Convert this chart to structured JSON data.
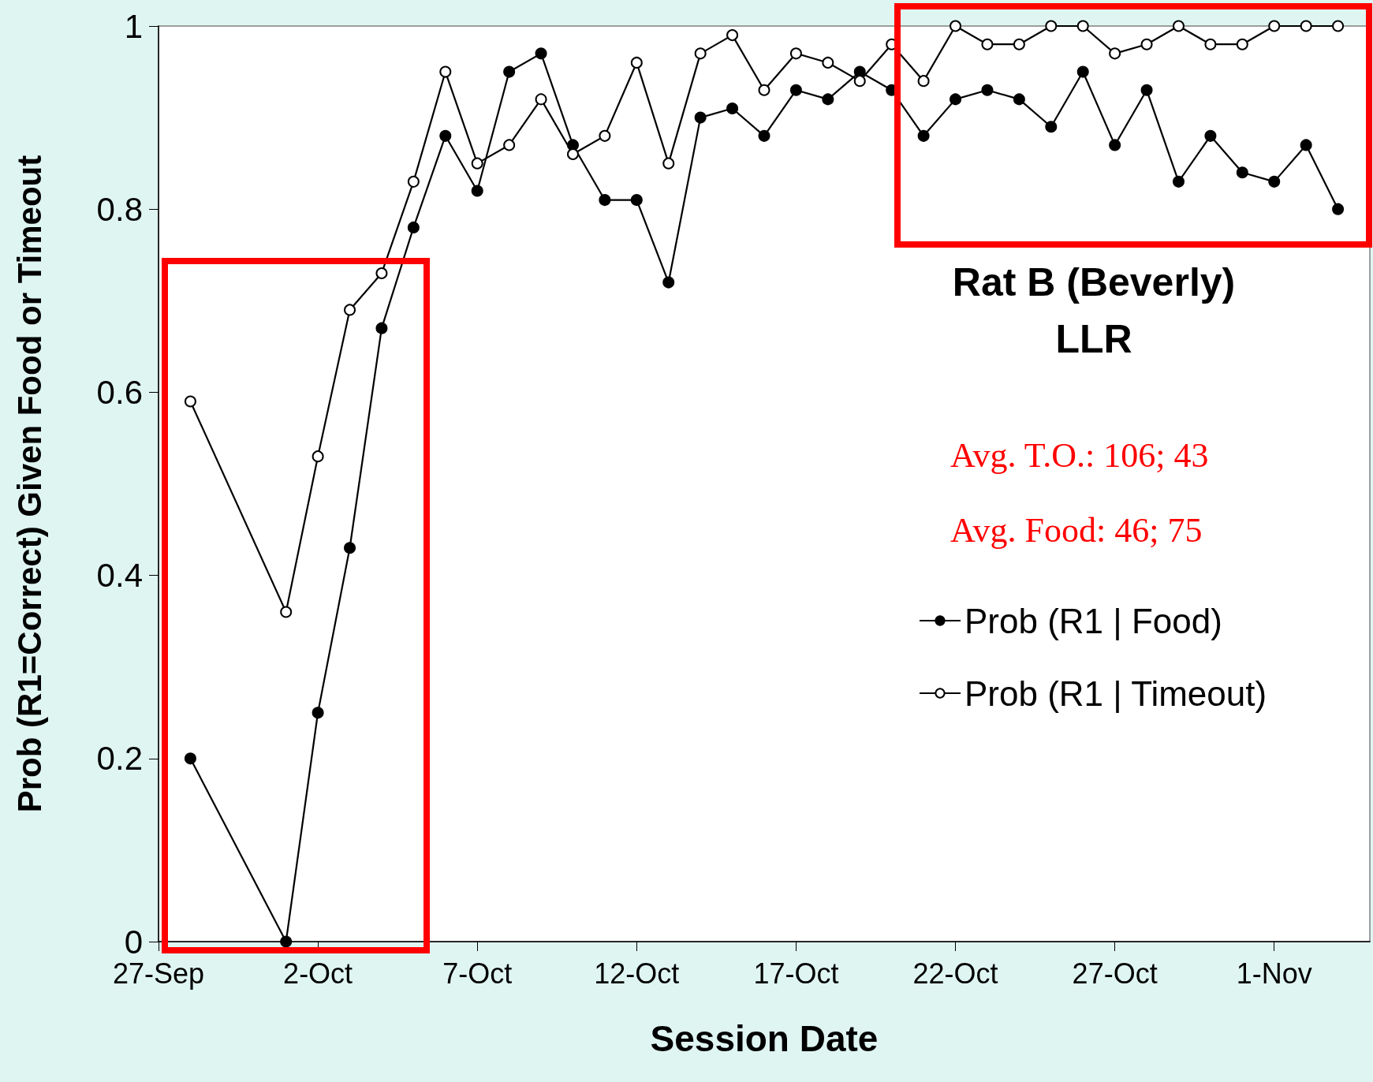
{
  "chart_data": {
    "type": "line",
    "title": "Rat B (Beverly)",
    "subtitle": "LLR",
    "xlabel": "Session Date",
    "ylabel": "Prob (R1=Correct) Given Food or Timeout",
    "annotations": [
      "Avg. T.O.: 106; 43",
      "Avg. Food: 46; 75"
    ],
    "x": [
      "--09-28",
      "--10-01",
      "--10-02",
      "--10-03",
      "--10-04",
      "--10-05",
      "--10-06",
      "--10-07",
      "--10-08",
      "--10-09",
      "--10-10",
      "--10-11",
      "--10-12",
      "--10-13",
      "--10-14",
      "--10-15",
      "--10-16",
      "--10-17",
      "--10-18",
      "--10-19",
      "--10-20",
      "--10-21",
      "--10-22",
      "--10-23",
      "--10-24",
      "--10-25",
      "--10-26",
      "--10-27",
      "--10-28",
      "--10-29",
      "--10-30",
      "--10-31",
      "--11-01",
      "--11-02",
      "--11-03"
    ],
    "series": [
      {
        "name": "Prob (R1 | Food)",
        "color": "#000000",
        "values": [
          0.2,
          0.0,
          0.25,
          0.43,
          0.67,
          0.78,
          0.88,
          0.82,
          0.95,
          0.97,
          0.87,
          0.81,
          0.81,
          0.72,
          0.9,
          0.91,
          0.88,
          0.93,
          0.92,
          0.95,
          0.93,
          0.88,
          0.92,
          0.93,
          0.92,
          0.89,
          0.95,
          0.87,
          0.93,
          0.83,
          0.88,
          0.84,
          0.83,
          0.87,
          0.8
        ]
      },
      {
        "name": "Prob (R1 | Timeout)",
        "color": "#000000",
        "values": [
          0.59,
          0.36,
          0.53,
          0.69,
          0.73,
          0.83,
          0.95,
          0.85,
          0.87,
          0.92,
          0.86,
          0.88,
          0.96,
          0.85,
          0.97,
          0.99,
          0.93,
          0.97,
          0.96,
          0.94,
          0.98,
          0.94,
          1.0,
          0.98,
          0.98,
          1.0,
          1.0,
          0.97,
          0.98,
          1.0,
          0.98,
          0.98,
          1.0,
          1.0,
          1.0
        ]
      }
    ],
    "xlim": [
      "--09-27",
      "--11-04"
    ],
    "xticks": [
      {
        "value": "--09-27",
        "label": "27-Sep"
      },
      {
        "value": "--10-02",
        "label": "2-Oct"
      },
      {
        "value": "--10-07",
        "label": "7-Oct"
      },
      {
        "value": "--10-12",
        "label": "12-Oct"
      },
      {
        "value": "--10-17",
        "label": "17-Oct"
      },
      {
        "value": "--10-22",
        "label": "22-Oct"
      },
      {
        "value": "--10-27",
        "label": "27-Oct"
      },
      {
        "value": "--11-01",
        "label": "1-Nov"
      }
    ],
    "ylim": [
      0,
      1
    ],
    "yticks": [
      0,
      0.2,
      0.4,
      0.6,
      0.8,
      1
    ],
    "grid": false,
    "legend": "right",
    "marker": "circle",
    "line_style": "solid"
  }
}
